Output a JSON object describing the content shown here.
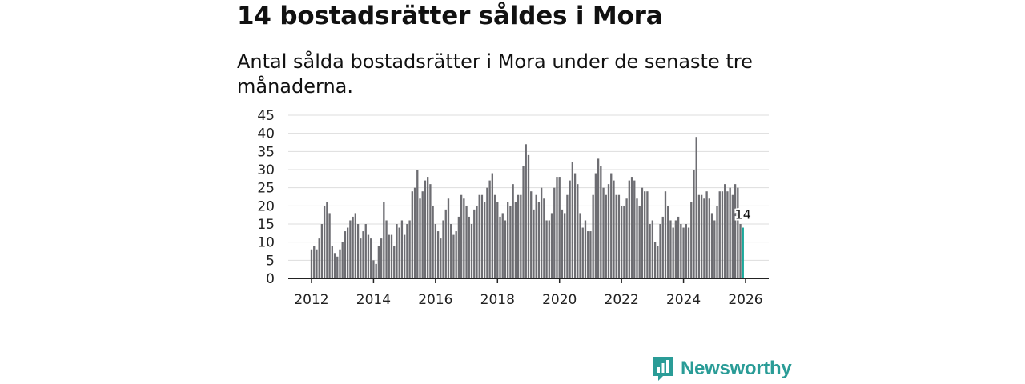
{
  "header": {
    "title": "14 bostadsrätter såldes i Mora",
    "subtitle": "Antal sålda bostadsrätter i Mora under de senaste tre månaderna."
  },
  "brand": {
    "name": "Newsworthy",
    "color": "#2a9c97",
    "icon": "newsworthy-logo-icon"
  },
  "colors": {
    "bar": "#6d6d72",
    "highlight": "#1aa89b",
    "grid": "#dddddd",
    "axis": "#222222"
  },
  "chart_data": {
    "type": "bar",
    "title": "14 bostadsrätter såldes i Mora",
    "xlabel": "",
    "ylabel": "",
    "ylim": [
      0,
      45
    ],
    "y_ticks": [
      "0",
      "5",
      "10",
      "15",
      "20",
      "25",
      "30",
      "35",
      "40",
      "45"
    ],
    "x_ticks": [
      "2012",
      "2014",
      "2016",
      "2018",
      "2020",
      "2022",
      "2024",
      "2026"
    ],
    "x_tick_values": [
      2012,
      2014,
      2016,
      2018,
      2020,
      2022,
      2024,
      2026
    ],
    "start_year": 2012,
    "months_per_year": 12,
    "frequency": "monthly",
    "values": [
      8,
      9,
      8,
      11,
      15,
      20,
      21,
      18,
      9,
      7,
      6,
      8,
      10,
      13,
      14,
      16,
      17,
      18,
      15,
      11,
      13,
      15,
      12,
      11,
      5,
      4,
      9,
      11,
      21,
      16,
      12,
      12,
      9,
      15,
      14,
      16,
      12,
      15,
      16,
      24,
      25,
      30,
      22,
      24,
      27,
      28,
      26,
      20,
      15,
      13,
      11,
      16,
      19,
      22,
      15,
      12,
      13,
      17,
      23,
      22,
      20,
      17,
      15,
      19,
      20,
      23,
      23,
      21,
      25,
      27,
      29,
      23,
      21,
      17,
      18,
      16,
      21,
      20,
      26,
      21,
      23,
      23,
      31,
      37,
      34,
      24,
      19,
      23,
      21,
      25,
      22,
      16,
      16,
      18,
      25,
      28,
      28,
      19,
      18,
      23,
      27,
      32,
      29,
      26,
      18,
      14,
      16,
      13,
      13,
      23,
      29,
      33,
      31,
      25,
      23,
      26,
      29,
      27,
      23,
      23,
      20,
      20,
      22,
      27,
      28,
      27,
      22,
      20,
      25,
      24,
      24,
      15,
      16,
      10,
      9,
      15,
      17,
      24,
      20,
      16,
      14,
      16,
      17,
      15,
      14,
      15,
      14,
      21,
      30,
      39,
      23,
      23,
      22,
      24,
      22,
      18,
      16,
      20,
      24,
      24,
      26,
      24,
      25,
      23,
      26,
      25,
      15,
      14
    ],
    "highlight_last": true,
    "last_value_label": "14"
  }
}
